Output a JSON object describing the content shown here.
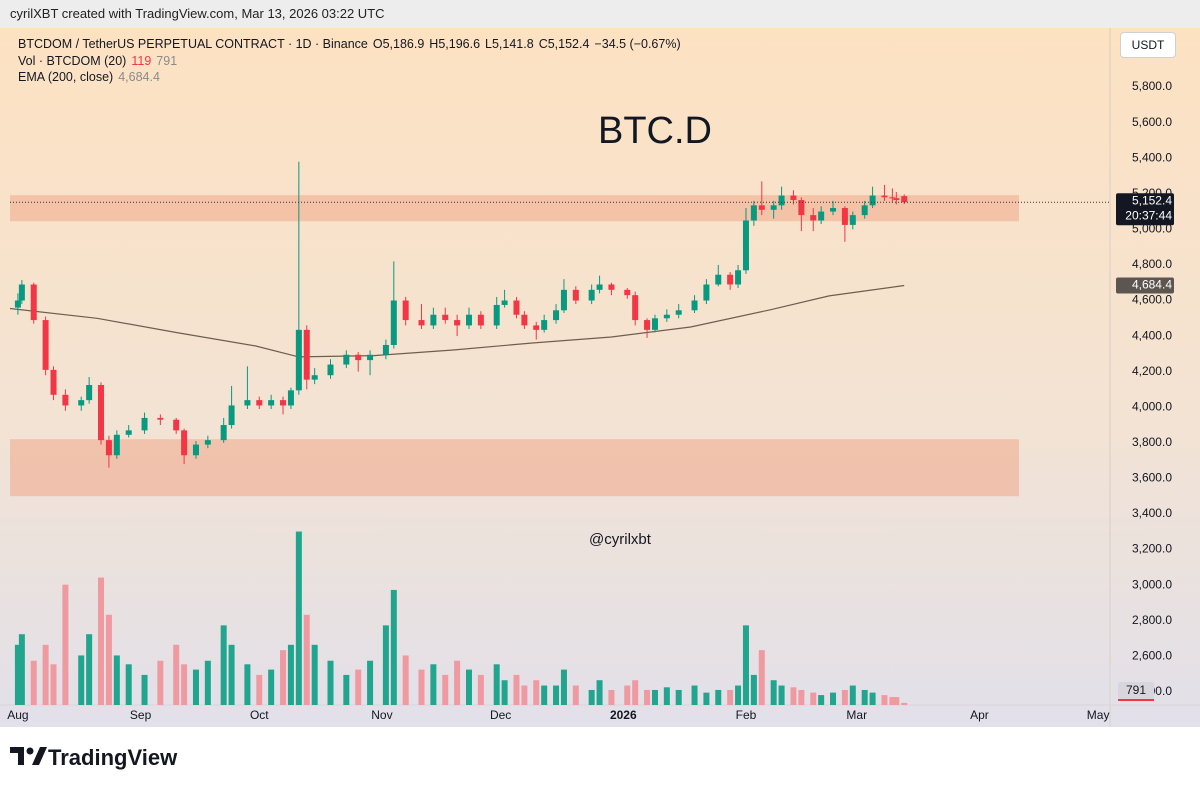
{
  "header": "cyrilXBT created with TradingView.com, Mar 13, 2026 03:22 UTC",
  "footer_brand": "TradingView",
  "chart_data": {
    "type": "candlestick",
    "title": "BTC.D",
    "watermark": "@cyrilxbt",
    "currency": "USDT",
    "symbol": "BTCDOM / TetherUS PERPETUAL CONTRACT · 1D · Binance",
    "ohlc_legend": [
      "O5,186.9",
      "H5,196.6",
      "L5,141.8",
      "C5,152.4"
    ],
    "change": "−34.5 (−0.67%)",
    "volume_legend": "Vol · BTCDOM (20)",
    "volume_ma": 791,
    "ema_legend": "EMA (200, close)",
    "ema_label": "4,684.4",
    "last_price_label": "5,152.4",
    "countdown": "20:37:44",
    "up_color": "#089981",
    "down_color": "#f23645",
    "up_volume_color": "#22a58f",
    "down_volume_color": "#ef9aa0",
    "grid": false,
    "x": [
      0,
      1,
      4,
      7,
      9,
      12,
      16,
      18,
      21,
      23,
      25,
      28,
      32,
      36,
      40,
      42,
      45,
      48,
      52,
      54,
      58,
      61,
      64,
      67,
      69,
      71,
      73,
      75,
      79,
      83,
      86,
      89,
      93,
      95,
      98,
      102,
      105,
      108,
      111,
      114,
      117,
      121,
      123,
      126,
      128,
      131,
      133,
      136,
      138,
      141,
      145,
      147,
      150,
      154,
      156,
      159,
      161,
      164,
      167,
      171,
      174,
      177,
      180,
      182,
      184,
      186,
      188,
      191,
      193,
      196,
      198,
      201,
      203,
      206,
      209,
      211,
      214,
      216,
      219,
      221,
      222,
      224
    ],
    "ohlc": [
      [
        4560,
        4640,
        4520,
        4600
      ],
      [
        4600,
        4715,
        4580,
        4690
      ],
      [
        4690,
        4700,
        4470,
        4490
      ],
      [
        4490,
        4510,
        4180,
        4210
      ],
      [
        4210,
        4230,
        4040,
        4070
      ],
      [
        4070,
        4100,
        3980,
        4010
      ],
      [
        4010,
        4060,
        3980,
        4040
      ],
      [
        4040,
        4170,
        4020,
        4125
      ],
      [
        4125,
        4140,
        3790,
        3815
      ],
      [
        3815,
        3840,
        3660,
        3730
      ],
      [
        3730,
        3870,
        3710,
        3845
      ],
      [
        3845,
        3900,
        3830,
        3870
      ],
      [
        3870,
        3970,
        3850,
        3940
      ],
      [
        3940,
        3960,
        3900,
        3930
      ],
      [
        3930,
        3940,
        3850,
        3870
      ],
      [
        3870,
        3880,
        3680,
        3730
      ],
      [
        3730,
        3810,
        3710,
        3790
      ],
      [
        3790,
        3840,
        3770,
        3815
      ],
      [
        3815,
        3940,
        3800,
        3900
      ],
      [
        3900,
        4120,
        3880,
        4010
      ],
      [
        4010,
        4230,
        3990,
        4040
      ],
      [
        4040,
        4060,
        3990,
        4010
      ],
      [
        4010,
        4070,
        3990,
        4040
      ],
      [
        4040,
        4060,
        3960,
        4010
      ],
      [
        4010,
        4110,
        3990,
        4095
      ],
      [
        4095,
        5380,
        4070,
        4435
      ],
      [
        4435,
        4460,
        4100,
        4155
      ],
      [
        4155,
        4220,
        4130,
        4180
      ],
      [
        4180,
        4270,
        4160,
        4240
      ],
      [
        4240,
        4320,
        4220,
        4295
      ],
      [
        4295,
        4310,
        4200,
        4265
      ],
      [
        4265,
        4320,
        4180,
        4295
      ],
      [
        4295,
        4380,
        4270,
        4350
      ],
      [
        4350,
        4820,
        4330,
        4600
      ],
      [
        4600,
        4620,
        4460,
        4490
      ],
      [
        4490,
        4580,
        4440,
        4460
      ],
      [
        4460,
        4560,
        4440,
        4520
      ],
      [
        4520,
        4560,
        4470,
        4490
      ],
      [
        4490,
        4520,
        4400,
        4460
      ],
      [
        4460,
        4560,
        4440,
        4520
      ],
      [
        4520,
        4540,
        4440,
        4460
      ],
      [
        4460,
        4620,
        4440,
        4575
      ],
      [
        4575,
        4660,
        4560,
        4600
      ],
      [
        4600,
        4620,
        4500,
        4520
      ],
      [
        4520,
        4540,
        4440,
        4460
      ],
      [
        4460,
        4480,
        4380,
        4435
      ],
      [
        4435,
        4520,
        4420,
        4490
      ],
      [
        4490,
        4580,
        4470,
        4545
      ],
      [
        4545,
        4720,
        4530,
        4660
      ],
      [
        4660,
        4680,
        4580,
        4600
      ],
      [
        4600,
        4690,
        4580,
        4660
      ],
      [
        4660,
        4740,
        4640,
        4690
      ],
      [
        4690,
        4700,
        4630,
        4660
      ],
      [
        4660,
        4670,
        4610,
        4630
      ],
      [
        4630,
        4650,
        4460,
        4490
      ],
      [
        4490,
        4500,
        4390,
        4435
      ],
      [
        4435,
        4520,
        4420,
        4500
      ],
      [
        4500,
        4550,
        4480,
        4520
      ],
      [
        4520,
        4580,
        4500,
        4545
      ],
      [
        4545,
        4630,
        4530,
        4600
      ],
      [
        4600,
        4720,
        4580,
        4690
      ],
      [
        4690,
        4800,
        4680,
        4745
      ],
      [
        4745,
        4760,
        4660,
        4690
      ],
      [
        4690,
        4800,
        4670,
        4770
      ],
      [
        4770,
        5120,
        4750,
        5050
      ],
      [
        5050,
        5160,
        5020,
        5135
      ],
      [
        5135,
        5270,
        5080,
        5110
      ],
      [
        5110,
        5160,
        5060,
        5135
      ],
      [
        5135,
        5240,
        5110,
        5190
      ],
      [
        5190,
        5220,
        5140,
        5165
      ],
      [
        5165,
        5180,
        4990,
        5080
      ],
      [
        5080,
        5120,
        4990,
        5050
      ],
      [
        5050,
        5130,
        5030,
        5100
      ],
      [
        5100,
        5160,
        5080,
        5120
      ],
      [
        5120,
        5130,
        4930,
        5025
      ],
      [
        5025,
        5100,
        5000,
        5080
      ],
      [
        5080,
        5160,
        5060,
        5135
      ],
      [
        5135,
        5240,
        5120,
        5190
      ],
      [
        5190,
        5250,
        5160,
        5180
      ],
      [
        5180,
        5230,
        5150,
        5175
      ],
      [
        5175,
        5210,
        5140,
        5165
      ],
      [
        5186.9,
        5196.6,
        5141.8,
        5152.4
      ]
    ],
    "volume": [
      3400,
      4000,
      2500,
      3400,
      2300,
      6800,
      2800,
      4000,
      7200,
      5100,
      2800,
      2300,
      1700,
      2500,
      3400,
      2300,
      2000,
      2500,
      4500,
      3400,
      2300,
      1700,
      2000,
      3100,
      3400,
      9800,
      5100,
      3400,
      2500,
      1700,
      2000,
      2500,
      4500,
      6500,
      2800,
      2000,
      2300,
      1700,
      2500,
      2000,
      1700,
      2300,
      1400,
      1700,
      1100,
      1400,
      1100,
      1100,
      2000,
      1100,
      850,
      1400,
      850,
      1100,
      1400,
      850,
      850,
      1000,
      850,
      1100,
      700,
      850,
      850,
      1100,
      4500,
      1700,
      3100,
      1400,
      1100,
      1000,
      850,
      700,
      560,
      700,
      850,
      1100,
      850,
      700,
      560,
      450,
      450,
      119
    ],
    "volume_lim": [
      0,
      38250
    ],
    "ema": {
      "color": "#6e5e4e",
      "x": [
        -2,
        20,
        40,
        60,
        71,
        90,
        110,
        130,
        150,
        170,
        190,
        205,
        224
      ],
      "values": [
        4555,
        4500,
        4420,
        4345,
        4283,
        4290,
        4322,
        4361,
        4395,
        4451,
        4547,
        4626,
        4684.4
      ]
    },
    "zones": [
      {
        "from": 5046,
        "to": 5192
      },
      {
        "from": 3500,
        "to": 3820
      }
    ],
    "zone_end": 253,
    "zone_color": "#f0a88a",
    "xlim": [
      -2,
      276
    ],
    "xticks": [
      {
        "value": 0,
        "label": "Aug"
      },
      {
        "value": 31,
        "label": "Sep"
      },
      {
        "value": 61,
        "label": "Oct"
      },
      {
        "value": 92,
        "label": "Nov"
      },
      {
        "value": 122,
        "label": "Dec"
      },
      {
        "value": 153,
        "label": "2026"
      },
      {
        "value": 184,
        "label": "Feb"
      },
      {
        "value": 212,
        "label": "Mar"
      },
      {
        "value": 243,
        "label": "Apr"
      },
      {
        "value": 273,
        "label": "May"
      }
    ],
    "ylim": [
      2326,
      6132
    ],
    "yticks": [
      {
        "value": 2400,
        "label": "2,400.0"
      },
      {
        "value": 2600,
        "label": "2,600.0"
      },
      {
        "value": 2800,
        "label": "2,800.0"
      },
      {
        "value": 3000,
        "label": "3,000.0"
      },
      {
        "value": 3200,
        "label": "3,200.0"
      },
      {
        "value": 3400,
        "label": "3,400.0"
      },
      {
        "value": 3600,
        "label": "3,600.0"
      },
      {
        "value": 3800,
        "label": "3,800.0"
      },
      {
        "value": 4000,
        "label": "4,000.0"
      },
      {
        "value": 4200,
        "label": "4,200.0"
      },
      {
        "value": 4400,
        "label": "4,400.0"
      },
      {
        "value": 4600,
        "label": "4,600.0"
      },
      {
        "value": 4800,
        "label": "4,800.0"
      },
      {
        "value": 5000,
        "label": "5,000.0"
      },
      {
        "value": 5200,
        "label": "5,200.0"
      },
      {
        "value": 5400,
        "label": "5,400.0"
      },
      {
        "value": 5600,
        "label": "5,600.0"
      },
      {
        "value": 5800,
        "label": "5,800.0"
      }
    ]
  }
}
